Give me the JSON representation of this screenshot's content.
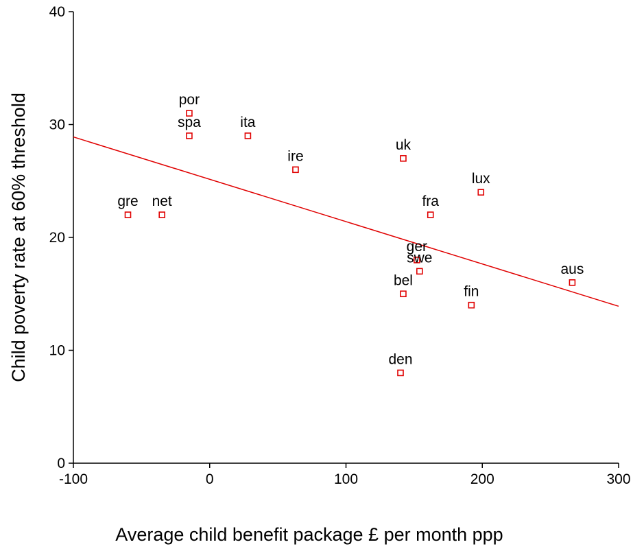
{
  "chart_data": {
    "type": "scatter",
    "title": "",
    "xlabel": "Average child benefit package £ per month ppp",
    "ylabel": "Child poverty rate at 60% threshold",
    "xlim": [
      -100,
      300
    ],
    "ylim": [
      0,
      40
    ],
    "xticks": [
      -100,
      0,
      100,
      200,
      300
    ],
    "yticks": [
      0,
      10,
      20,
      30,
      40
    ],
    "grid": false,
    "legend": "none",
    "marker_color": "#e00000",
    "line_color": "#e00000",
    "points": [
      {
        "label": "por",
        "x": -15,
        "y": 31
      },
      {
        "label": "spa",
        "x": -15,
        "y": 29
      },
      {
        "label": "ita",
        "x": 28,
        "y": 29
      },
      {
        "label": "ire",
        "x": 63,
        "y": 26
      },
      {
        "label": "uk",
        "x": 142,
        "y": 27
      },
      {
        "label": "lux",
        "x": 199,
        "y": 24
      },
      {
        "label": "fra",
        "x": 162,
        "y": 22
      },
      {
        "label": "gre",
        "x": -60,
        "y": 22
      },
      {
        "label": "net",
        "x": -35,
        "y": 22
      },
      {
        "label": "ger",
        "x": 152,
        "y": 18
      },
      {
        "label": "swe",
        "x": 154,
        "y": 17
      },
      {
        "label": "bel",
        "x": 142,
        "y": 15
      },
      {
        "label": "fin",
        "x": 192,
        "y": 14
      },
      {
        "label": "aus",
        "x": 266,
        "y": 16
      },
      {
        "label": "den",
        "x": 140,
        "y": 8
      }
    ],
    "fit_line": {
      "x": [
        -100,
        300
      ],
      "y": [
        28.9,
        13.9
      ]
    }
  }
}
